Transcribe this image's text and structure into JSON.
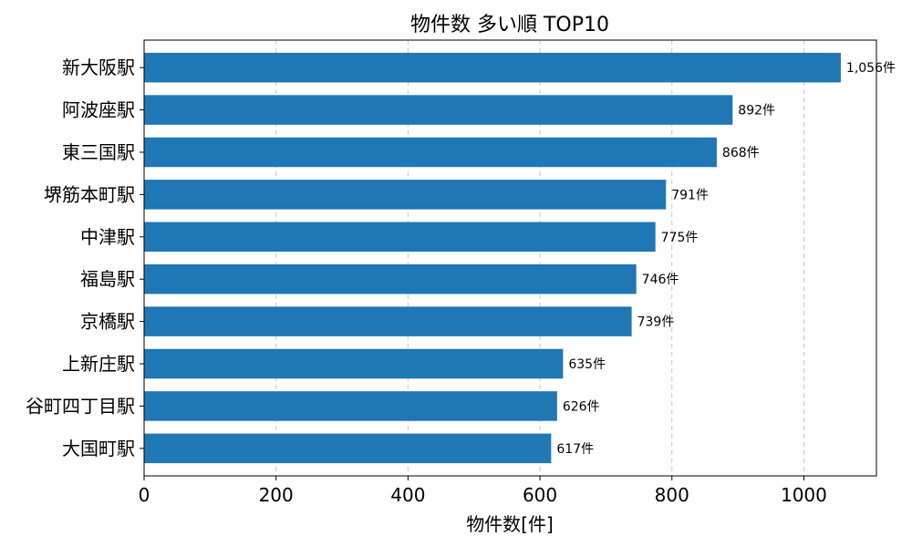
{
  "chart_data": {
    "type": "bar",
    "orientation": "horizontal",
    "title": "物件数 多い順 TOP10",
    "xlabel": "物件数[件]",
    "ylabel": "",
    "xlim": [
      0,
      1110
    ],
    "xticks": [
      0,
      200,
      400,
      600,
      800,
      1000
    ],
    "grid": "x-dashed",
    "bar_color": "#1f77b4",
    "categories": [
      "新大阪駅",
      "阿波座駅",
      "東三国駅",
      "堺筋本町駅",
      "中津駅",
      "福島駅",
      "京橋駅",
      "上新庄駅",
      "谷町四丁目駅",
      "大国町駅"
    ],
    "values": [
      1056,
      892,
      868,
      791,
      775,
      746,
      739,
      635,
      626,
      617
    ],
    "data_labels": [
      "1,056件",
      "892件",
      "868件",
      "791件",
      "775件",
      "746件",
      "739件",
      "635件",
      "626件",
      "617件"
    ]
  }
}
